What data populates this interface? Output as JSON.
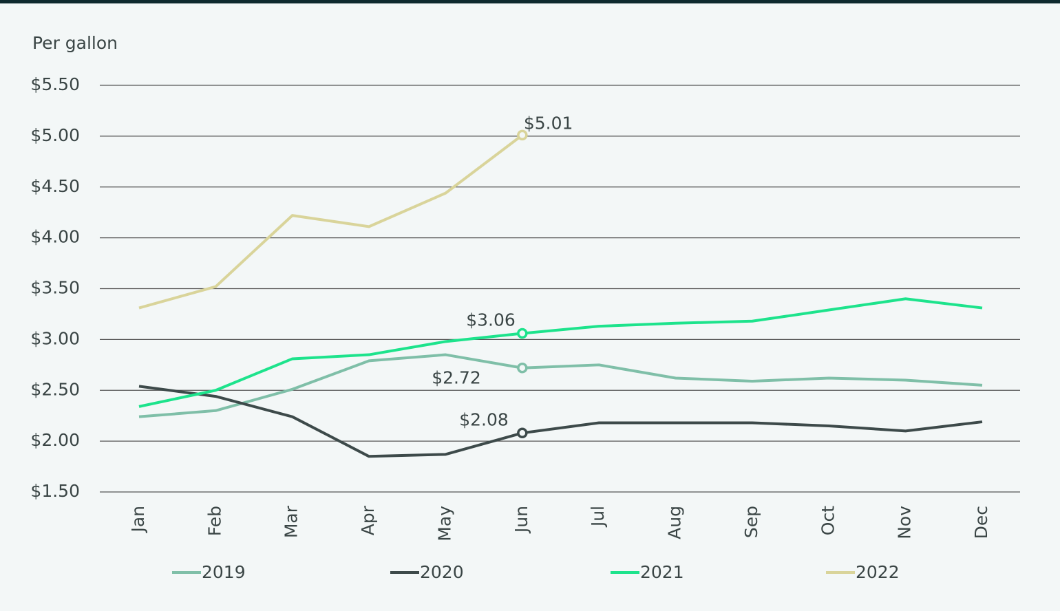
{
  "chart_data": {
    "type": "line",
    "y_axis_label": "Per gallon",
    "categories": [
      "Jan",
      "Feb",
      "Mar",
      "Apr",
      "May",
      "Jun",
      "Jul",
      "Aug",
      "Sep",
      "Oct",
      "Nov",
      "Dec"
    ],
    "ylim": [
      1.5,
      5.5
    ],
    "yticks": [
      {
        "value": 1.5,
        "label": "$1.50"
      },
      {
        "value": 2,
        "label": "$2.00"
      },
      {
        "value": 2.5,
        "label": "$2.50"
      },
      {
        "value": 3,
        "label": "$3.00"
      },
      {
        "value": 3.5,
        "label": "$3.50"
      },
      {
        "value": 4,
        "label": "$4.00"
      },
      {
        "value": 4.5,
        "label": "$4.50"
      },
      {
        "value": 5,
        "label": "$5.00"
      },
      {
        "value": 5.5,
        "label": "$5.50"
      }
    ],
    "grid": true,
    "legend": "bottom",
    "series": [
      {
        "name": "2019",
        "color": "#7fbfa8",
        "values": [
          2.24,
          2.3,
          2.51,
          2.79,
          2.85,
          2.72,
          2.75,
          2.62,
          2.59,
          2.62,
          2.6,
          2.55
        ],
        "value_labels": [
          null,
          null,
          null,
          null,
          null,
          "$2.72",
          null,
          null,
          null,
          null,
          null,
          null
        ]
      },
      {
        "name": "2020",
        "color": "#3d4a4a",
        "values": [
          2.54,
          2.44,
          2.24,
          1.85,
          1.87,
          2.08,
          2.18,
          2.18,
          2.18,
          2.15,
          2.1,
          2.19
        ],
        "value_labels": [
          null,
          null,
          null,
          null,
          null,
          "$2.08",
          null,
          null,
          null,
          null,
          null,
          null
        ]
      },
      {
        "name": "2021",
        "color": "#1de38c",
        "values": [
          2.34,
          2.5,
          2.81,
          2.85,
          2.98,
          3.06,
          3.13,
          3.16,
          3.18,
          3.29,
          3.4,
          3.31
        ],
        "value_labels": [
          null,
          null,
          null,
          null,
          null,
          "$3.06",
          null,
          null,
          null,
          null,
          null,
          null
        ]
      },
      {
        "name": "2022",
        "color": "#d9d49a",
        "values": [
          3.31,
          3.52,
          4.22,
          4.11,
          4.44,
          5.01,
          null,
          null,
          null,
          null,
          null,
          null
        ],
        "value_labels": [
          null,
          null,
          null,
          null,
          null,
          "$5.01",
          null,
          null,
          null,
          null,
          null,
          null
        ]
      }
    ]
  }
}
